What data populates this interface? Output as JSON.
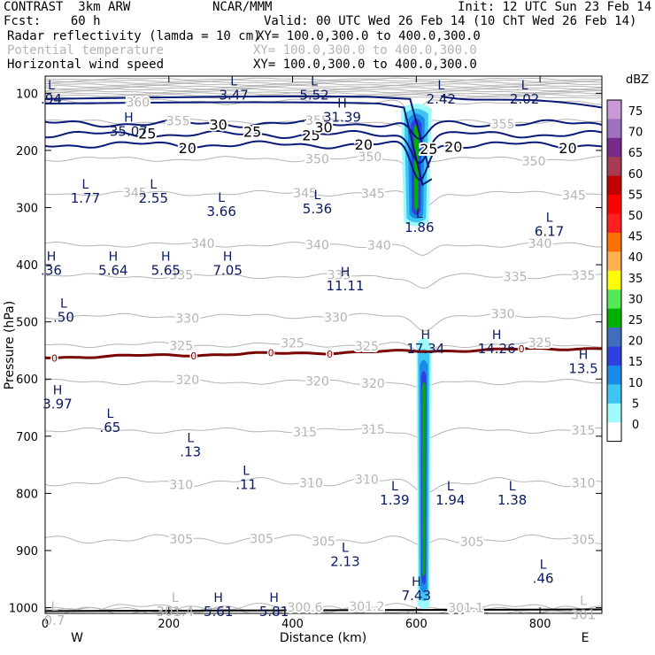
{
  "header": {
    "project": "CONTRAST",
    "model": "3km ARW",
    "org": "NCAR/MMM",
    "init": "Init: 12 UTC Sun 23 Feb 14",
    "fcst_label": "Fcst:",
    "fcst_value": "60 h",
    "valid": "Valid: 00 UTC Wed 26 Feb 14 (10 ChT Wed 26 Feb 14)",
    "fields": [
      {
        "name": "Radar reflectivity (lamda = 10 cm)",
        "xy": "XY= 100.0,300.0 to 400.0,300.0",
        "color": "#000000"
      },
      {
        "name": "Potential temperature",
        "xy": "XY= 100.0,300.0 to 400.0,300.0",
        "color": "#b4b4b4"
      },
      {
        "name": "Horizontal wind speed",
        "xy": "XY= 100.0,300.0 to 400.0,300.0",
        "color": "#000000"
      }
    ]
  },
  "colors": {
    "theta": "#b4b4b4",
    "wind": "#0a1a78",
    "zero_line": "#7a0000",
    "label_text": "#0a1a60"
  },
  "chart_data": {
    "type": "cross-section contour",
    "xlabel": "Distance (km)",
    "ylabel": "Pressure (hPa)",
    "xlim": [
      0,
      900
    ],
    "ylim": [
      1010,
      70
    ],
    "x_ticks": [
      0,
      200,
      400,
      600,
      800
    ],
    "y_ticks": [
      100,
      200,
      300,
      400,
      500,
      600,
      700,
      800,
      900,
      1000
    ],
    "x_end_labels": {
      "left": "W",
      "right": "E"
    },
    "colorbar": {
      "unit": "dBZ",
      "levels": [
        0,
        5,
        10,
        15,
        20,
        25,
        30,
        35,
        40,
        45,
        50,
        55,
        60,
        65,
        70,
        75
      ],
      "colors": [
        "#ffffff",
        "#9ffbfb",
        "#3ec5f3",
        "#1a8ae8",
        "#3040e0",
        "#3f6ebf",
        "#00b000",
        "#55e855",
        "#ffff00",
        "#ffb050",
        "#ff7000",
        "#ff2020",
        "#ff0000",
        "#c00000",
        "#a83c52",
        "#7a2a8a",
        "#a070c0",
        "#c89ad8"
      ]
    },
    "theta_contours": [
      {
        "label": "300.6",
        "p": 1000,
        "label_x": [
          420
        ]
      },
      {
        "label": "301.2",
        "p": 1005,
        "label_x": [
          520
        ]
      },
      {
        "label": "301.1",
        "p": 1005,
        "label_x": [
          680
        ]
      },
      {
        "label": "305",
        "p": 880,
        "label_x": [
          220,
          350,
          450,
          690,
          870
        ]
      },
      {
        "label": "310",
        "p": 780,
        "label_x": [
          220,
          430,
          520,
          870
        ]
      },
      {
        "label": "315",
        "p": 690,
        "label_x": [
          420,
          530,
          870
        ]
      },
      {
        "label": "320",
        "p": 605,
        "label_x": [
          230,
          440,
          530
        ]
      },
      {
        "label": "325",
        "p": 540,
        "label_x": [
          220,
          400,
          520,
          800
        ]
      },
      {
        "label": "330",
        "p": 490,
        "label_x": [
          230,
          470,
          740
        ]
      },
      {
        "label": "335",
        "p": 420,
        "label_x": [
          220,
          475,
          760,
          870
        ]
      },
      {
        "label": "340",
        "p": 365,
        "label_x": [
          255,
          440,
          540,
          800
        ]
      },
      {
        "label": "345",
        "p": 275,
        "label_x": [
          145,
          420,
          530,
          855
        ]
      },
      {
        "label": "350",
        "p": 215,
        "label_x": [
          440,
          525,
          790
        ]
      },
      {
        "label": "355",
        "p": 150,
        "label_x": [
          215,
          440,
          740
        ]
      },
      {
        "label": "360",
        "p": 115,
        "label_x": [
          150
        ]
      }
    ],
    "wind_contours": [
      {
        "label": "20",
        "p": 190,
        "label_x": [
          230,
          515,
          660,
          845
        ]
      },
      {
        "label": "25",
        "p": 175,
        "label_x": [
          165,
          335,
          430,
          620
        ]
      },
      {
        "label": "30",
        "p": 155,
        "label_x": [
          280,
          450
        ]
      }
    ],
    "zero_line_labels": [
      "0",
      "0",
      "0",
      "0",
      "0"
    ],
    "extrema": [
      {
        "type": "L",
        "value": ".94",
        "x": 10,
        "p": 93
      },
      {
        "type": "L",
        "value": "3.47",
        "x": 305,
        "p": 86
      },
      {
        "type": "L",
        "value": "5.52",
        "x": 435,
        "p": 86
      },
      {
        "type": "L",
        "value": "2.42",
        "x": 640,
        "p": 93
      },
      {
        "type": "L",
        "value": "2.02",
        "x": 775,
        "p": 93
      },
      {
        "type": "H",
        "value": "31.39",
        "x": 480,
        "p": 125
      },
      {
        "type": "H",
        "value": "35.07",
        "x": 135,
        "p": 150
      },
      {
        "type": "L",
        "value": "1.77",
        "x": 65,
        "p": 267
      },
      {
        "type": "L",
        "value": "2.55",
        "x": 175,
        "p": 267
      },
      {
        "type": "L",
        "value": "3.66",
        "x": 285,
        "p": 290
      },
      {
        "type": "L",
        "value": "5.36",
        "x": 440,
        "p": 285
      },
      {
        "type": "L",
        "value": "1.86",
        "x": 605,
        "p": 318
      },
      {
        "type": "L",
        "value": "6.17",
        "x": 815,
        "p": 325
      },
      {
        "type": "H",
        "value": ".36",
        "x": 10,
        "p": 393
      },
      {
        "type": "H",
        "value": "5.64",
        "x": 110,
        "p": 393
      },
      {
        "type": "H",
        "value": "5.65",
        "x": 195,
        "p": 393
      },
      {
        "type": "H",
        "value": "7.05",
        "x": 295,
        "p": 393
      },
      {
        "type": "H",
        "value": "11.11",
        "x": 485,
        "p": 420
      },
      {
        "type": "L",
        "value": ".50",
        "x": 30,
        "p": 475
      },
      {
        "type": "H",
        "value": "17.34",
        "x": 615,
        "p": 530
      },
      {
        "type": "H",
        "value": "14.26",
        "x": 730,
        "p": 530
      },
      {
        "type": "H",
        "value": "13.5",
        "x": 870,
        "p": 565
      },
      {
        "type": "H",
        "value": "3.97",
        "x": 20,
        "p": 627
      },
      {
        "type": "L",
        "value": ".65",
        "x": 105,
        "p": 668
      },
      {
        "type": "L",
        "value": ".13",
        "x": 235,
        "p": 710
      },
      {
        "type": "L",
        "value": ".11",
        "x": 325,
        "p": 768
      },
      {
        "type": "L",
        "value": "1.39",
        "x": 565,
        "p": 795
      },
      {
        "type": "L",
        "value": "1.94",
        "x": 655,
        "p": 795
      },
      {
        "type": "L",
        "value": "1.38",
        "x": 755,
        "p": 795
      },
      {
        "type": "L",
        "value": "2.13",
        "x": 485,
        "p": 902
      },
      {
        "type": "L",
        "value": ".46",
        "x": 805,
        "p": 932
      },
      {
        "type": "H",
        "value": "7.43",
        "x": 600,
        "p": 962
      },
      {
        "type": "L",
        "value": "301.4",
        "x": 210,
        "p": 990
      },
      {
        "type": "H",
        "value": "5.61",
        "x": 280,
        "p": 990
      },
      {
        "type": "H",
        "value": "5.81",
        "x": 370,
        "p": 990
      },
      {
        "type": "L",
        "value": "301",
        "x": 870,
        "p": 995
      },
      {
        "type": "L",
        "value": "0.7",
        "x": 15,
        "p": 1005
      }
    ],
    "reflectivity_cells": [
      {
        "x": 600,
        "p_top": 115,
        "p_bot": 335,
        "half_width_km": 25,
        "peak_dbz": 30
      },
      {
        "x": 612,
        "p_top": 525,
        "p_bot": 1005,
        "half_width_km": 12,
        "peak_dbz": 30
      }
    ]
  }
}
